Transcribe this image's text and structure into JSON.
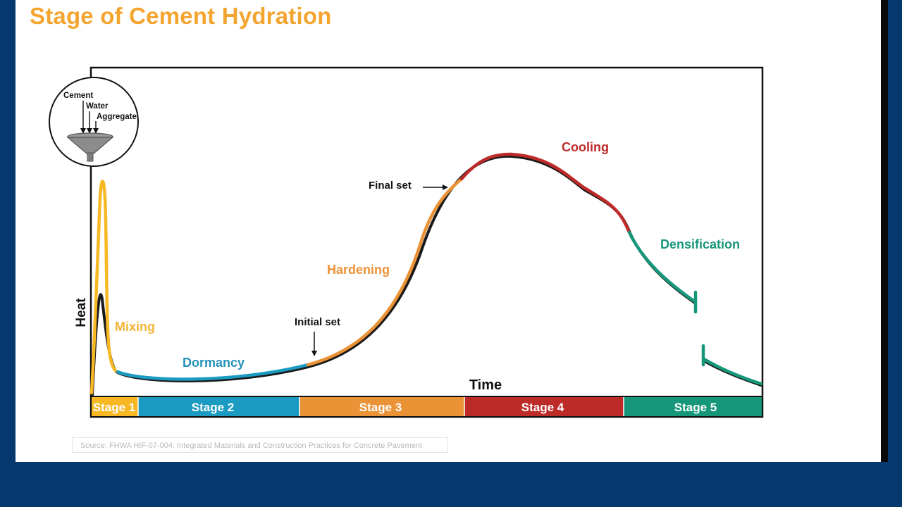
{
  "slide": {
    "title": "Stage of Cement Hydration",
    "source": "Source: FHWA HIF-07-004: Integrated Materials and Construction Practices for Concrete Pavement"
  },
  "diagram": {
    "y_axis_label": "Heat",
    "x_axis_label": "Time",
    "inputs": {
      "cement": "Cement",
      "water": "Water",
      "aggregate": "Aggregate"
    },
    "phases": {
      "mixing": "Mixing",
      "dormancy": "Dormancy",
      "hardening": "Hardening",
      "cooling": "Cooling",
      "densification": "Densification"
    },
    "events": {
      "initial_set": "Initial set",
      "final_set": "Final set"
    },
    "stages": [
      {
        "label": "Stage 1",
        "color": "#f7b824"
      },
      {
        "label": "Stage 2",
        "color": "#1b9bc2"
      },
      {
        "label": "Stage 3",
        "color": "#ea9236"
      },
      {
        "label": "Stage 4",
        "color": "#bd2b29"
      },
      {
        "label": "Stage 5",
        "color": "#17977a"
      }
    ],
    "colors": {
      "mixing": "#f7b824",
      "dormancy": "#1b9bc2",
      "hardening": "#ea9236",
      "cooling": "#bd2b29",
      "densification": "#17977a",
      "title": "#f4a530"
    }
  }
}
